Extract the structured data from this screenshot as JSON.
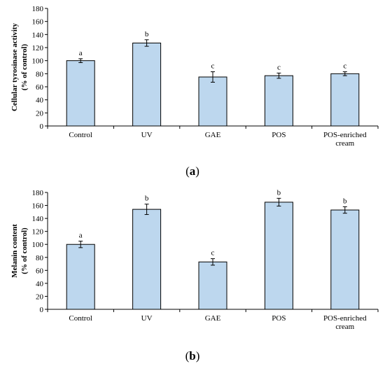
{
  "colors": {
    "bar_fill": "#bdd7ee",
    "bar_stroke": "#000000",
    "axis": "#000000"
  },
  "panels": [
    {
      "panel_label": "a",
      "chart_data": {
        "type": "bar",
        "categories": [
          "Control",
          "UV",
          "GAE",
          "POS",
          "POS-enriched cream"
        ],
        "category_lines": [
          [
            "Control"
          ],
          [
            "UV"
          ],
          [
            "GAE"
          ],
          [
            "POS"
          ],
          [
            "POS-enriched",
            "cream"
          ]
        ],
        "values": [
          100,
          127,
          75,
          77,
          80
        ],
        "errors": [
          3,
          5,
          8,
          4,
          3
        ],
        "significance": [
          "a",
          "b",
          "c",
          "c",
          "c"
        ],
        "ylabel_lines": [
          "Cellular tyrosinase activity",
          "(% of control)"
        ],
        "ylim": [
          0,
          180
        ],
        "yticks": [
          0,
          20,
          40,
          60,
          80,
          100,
          120,
          140,
          160,
          180
        ],
        "grid": false
      }
    },
    {
      "panel_label": "b",
      "chart_data": {
        "type": "bar",
        "categories": [
          "Control",
          "UV",
          "GAE",
          "POS",
          "POS-enriched cream"
        ],
        "category_lines": [
          [
            "Control"
          ],
          [
            "UV"
          ],
          [
            "GAE"
          ],
          [
            "POS"
          ],
          [
            "POS-enriched",
            "cream"
          ]
        ],
        "values": [
          100,
          154,
          73,
          165,
          153
        ],
        "errors": [
          5,
          8,
          5,
          6,
          5
        ],
        "significance": [
          "a",
          "b",
          "c",
          "b",
          "b"
        ],
        "ylabel_lines": [
          "Melanin content",
          "(% of control)"
        ],
        "ylim": [
          0,
          180
        ],
        "yticks": [
          0,
          20,
          40,
          60,
          80,
          100,
          120,
          140,
          160,
          180
        ],
        "grid": false
      }
    }
  ]
}
